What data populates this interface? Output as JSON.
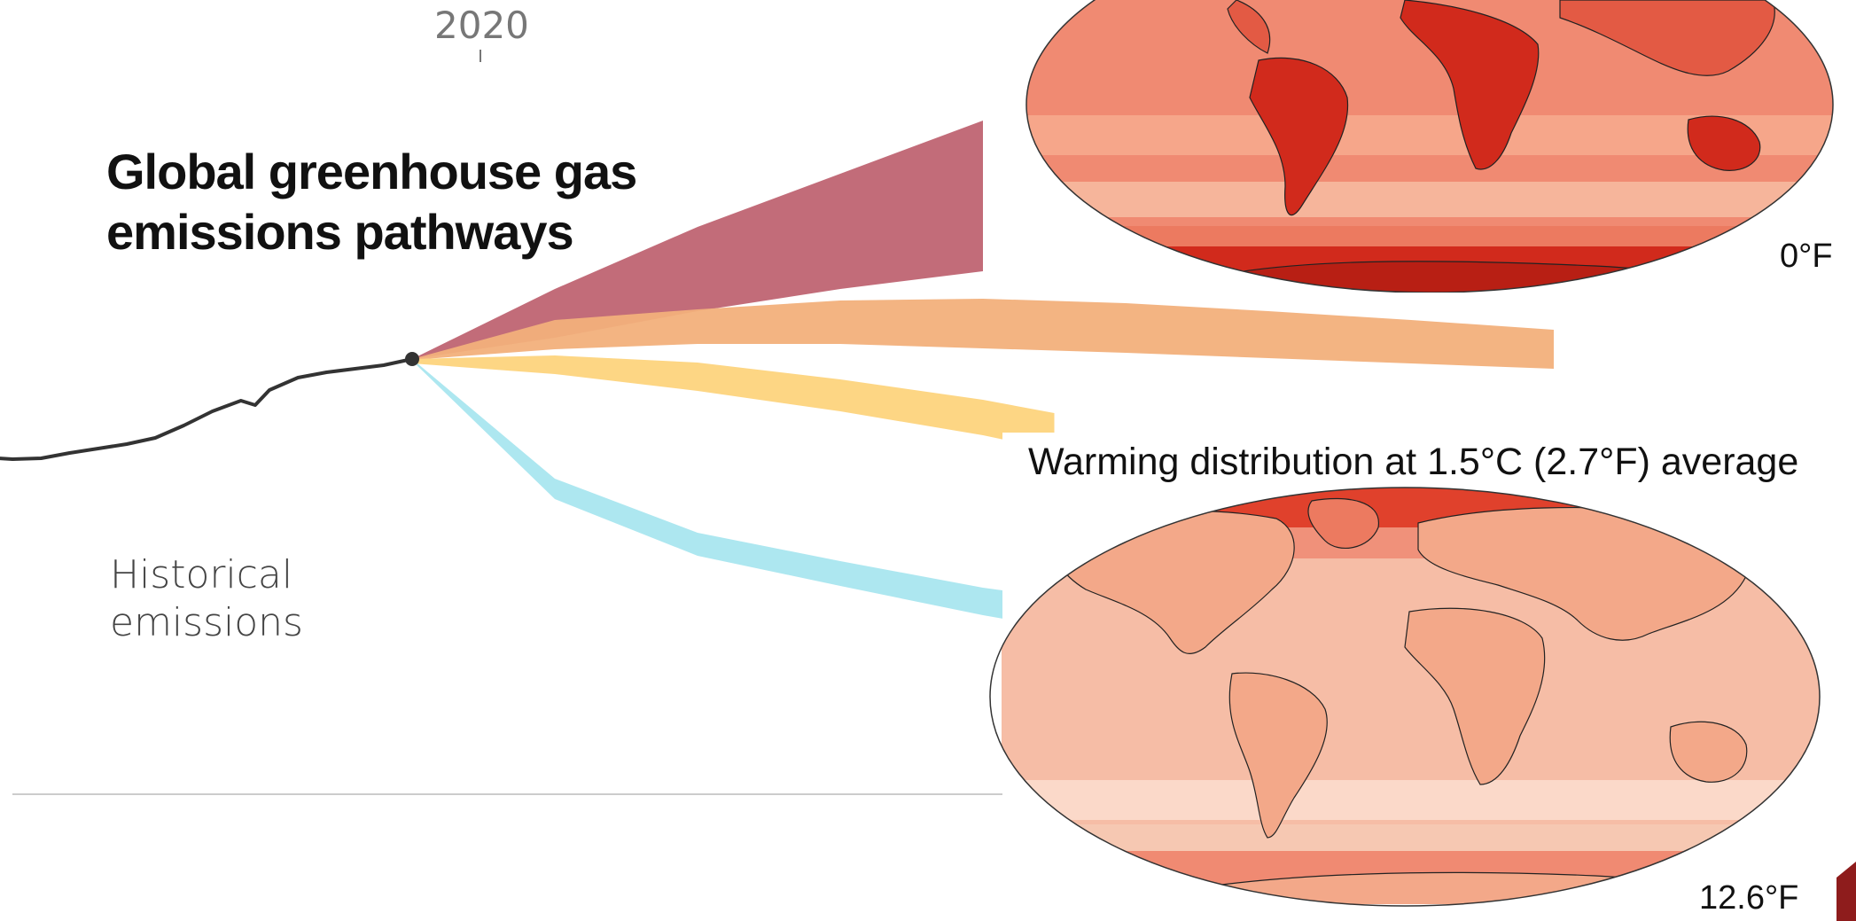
{
  "chart_data": {
    "type": "area",
    "title": "Global greenhouse gas emissions pathways",
    "title_lines": [
      "Global greenhouse gas",
      "emissions pathways"
    ],
    "x_tick_label": "2020",
    "historical_label_lines": [
      "Historical",
      "emissions"
    ],
    "historical": {
      "name": "Historical emissions",
      "x": [
        1990,
        1992,
        1994,
        1996,
        1998,
        2000,
        2002,
        2004,
        2006,
        2008,
        2009,
        2010,
        2012,
        2014,
        2016,
        2018,
        2020
      ],
      "y": [
        38.0,
        37.8,
        37.9,
        38.5,
        39.0,
        39.5,
        40.2,
        41.6,
        43.2,
        44.4,
        43.9,
        45.6,
        47.0,
        47.6,
        48.0,
        48.4,
        49.1
      ]
    },
    "pathways": [
      {
        "color": "#bf6472",
        "x": [
          2020,
          2030,
          2040,
          2050,
          2060
        ],
        "low": [
          49.1,
          51.5,
          54.5,
          57.0,
          59.0
        ],
        "high": [
          49.1,
          57.0,
          64.0,
          70.0,
          76.0
        ]
      },
      {
        "color": "#f2b07b",
        "x": [
          2020,
          2030,
          2040,
          2050,
          2060,
          2070,
          2080,
          2090,
          2100
        ],
        "low": [
          49.0,
          50.2,
          50.8,
          50.8,
          50.3,
          49.8,
          49.2,
          48.6,
          48.0
        ],
        "high": [
          49.1,
          53.5,
          54.7,
          55.7,
          55.9,
          55.4,
          54.5,
          53.5,
          52.4
        ]
      },
      {
        "color": "#fdd47d",
        "x": [
          2020,
          2030,
          2040,
          2050,
          2060,
          2065
        ],
        "low": [
          48.6,
          47.4,
          45.5,
          43.2,
          40.5,
          38.8
        ],
        "high": [
          49.1,
          49.5,
          48.7,
          46.8,
          44.5,
          43.0
        ]
      },
      {
        "color": "#a9e6ef",
        "x": [
          2020,
          2030,
          2040,
          2050,
          2060,
          2065
        ],
        "low": [
          48.9,
          33.3,
          26.9,
          23.5,
          20.2,
          18.8
        ],
        "high": [
          49.1,
          35.6,
          29.5,
          26.3,
          23.3,
          22.2
        ]
      }
    ],
    "xlim": [
      1990,
      2100
    ],
    "ylim": [
      0,
      85
    ],
    "grid": false
  },
  "maps": {
    "caption": "Warming distribution at 1.5°C (2.7°F) average",
    "scale_min_label": "0°F",
    "scale_max_label": "12.6°F"
  },
  "colors": {
    "historical_line": "#333333",
    "baseline": "#cccccc",
    "map_hot": "#d12a1c",
    "map_warm": "#f08a72",
    "map_mild": "#f6bda6",
    "map_cool": "#fbd9c9",
    "scale_dark": "#8e1c1c"
  }
}
